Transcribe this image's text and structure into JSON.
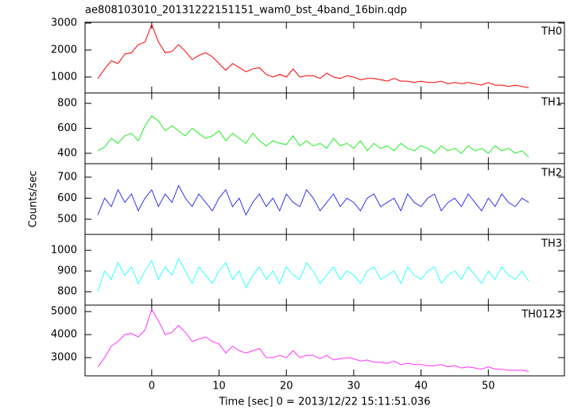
{
  "chart_data": [
    {
      "type": "line",
      "title": "ae808103010_20131222151151_wam0_bst_4band_16bin.qdp",
      "x": [
        -8,
        -7,
        -6,
        -5,
        -4,
        -3,
        -2,
        -1,
        0,
        1,
        2,
        3,
        4,
        5,
        6,
        7,
        8,
        9,
        10,
        11,
        12,
        13,
        14,
        15,
        16,
        17,
        18,
        19,
        20,
        21,
        22,
        23,
        24,
        25,
        26,
        27,
        28,
        29,
        30,
        31,
        32,
        33,
        34,
        35,
        36,
        37,
        38,
        39,
        40,
        41,
        42,
        43,
        44,
        45,
        46,
        47,
        48,
        49,
        50,
        51,
        52,
        53,
        54,
        55,
        56
      ],
      "series": [
        {
          "name": "TH0",
          "color": "#ff0000",
          "values": [
            950,
            1300,
            1600,
            1500,
            1850,
            1900,
            2200,
            2300,
            2950,
            2300,
            1900,
            1950,
            2200,
            1950,
            1650,
            1800,
            1900,
            1750,
            1500,
            1250,
            1500,
            1350,
            1200,
            1300,
            1350,
            1100,
            1000,
            1100,
            1000,
            1300,
            1000,
            1050,
            1050,
            950,
            1150,
            1000,
            950,
            1050,
            1000,
            900,
            950,
            950,
            900,
            850,
            950,
            850,
            850,
            800,
            850,
            800,
            800,
            850,
            750,
            800,
            750,
            800,
            750,
            700,
            800,
            700,
            700,
            650,
            700,
            650,
            600
          ]
        }
      ],
      "xlim": [
        -9.9,
        61.3
      ],
      "xticks": [
        0,
        10,
        20,
        30,
        40,
        50
      ],
      "ylim": [
        410,
        3030
      ],
      "yticks": [
        1000,
        2000,
        3000
      ]
    },
    {
      "type": "line",
      "x": [
        -8,
        -7,
        -6,
        -5,
        -4,
        -3,
        -2,
        -1,
        0,
        1,
        2,
        3,
        4,
        5,
        6,
        7,
        8,
        9,
        10,
        11,
        12,
        13,
        14,
        15,
        16,
        17,
        18,
        19,
        20,
        21,
        22,
        23,
        24,
        25,
        26,
        27,
        28,
        29,
        30,
        31,
        32,
        33,
        34,
        35,
        36,
        37,
        38,
        39,
        40,
        41,
        42,
        43,
        44,
        45,
        46,
        47,
        48,
        49,
        50,
        51,
        52,
        53,
        54,
        55,
        56
      ],
      "series": [
        {
          "name": "TH1",
          "color": "#22ee22",
          "values": [
            420,
            450,
            520,
            480,
            540,
            560,
            500,
            620,
            700,
            660,
            580,
            620,
            580,
            540,
            600,
            560,
            520,
            540,
            580,
            500,
            560,
            520,
            480,
            560,
            500,
            460,
            500,
            480,
            470,
            540,
            460,
            500,
            460,
            480,
            440,
            520,
            460,
            480,
            440,
            500,
            420,
            480,
            440,
            460,
            420,
            480,
            440,
            420,
            460,
            440,
            400,
            460,
            420,
            440,
            400,
            460,
            420,
            440,
            400,
            460,
            420,
            440,
            400,
            420,
            370
          ]
        }
      ],
      "xlim": [
        -9.9,
        61.3
      ],
      "xticks": [
        0,
        10,
        20,
        30,
        40,
        50
      ],
      "ylim": [
        317,
        883
      ],
      "yticks": [
        400,
        600,
        800
      ]
    },
    {
      "type": "line",
      "y_label": "Counts/sec",
      "x": [
        -8,
        -7,
        -6,
        -5,
        -4,
        -3,
        -2,
        -1,
        0,
        1,
        2,
        3,
        4,
        5,
        6,
        7,
        8,
        9,
        10,
        11,
        12,
        13,
        14,
        15,
        16,
        17,
        18,
        19,
        20,
        21,
        22,
        23,
        24,
        25,
        26,
        27,
        28,
        29,
        30,
        31,
        32,
        33,
        34,
        35,
        36,
        37,
        38,
        39,
        40,
        41,
        42,
        43,
        44,
        45,
        46,
        47,
        48,
        49,
        50,
        51,
        52,
        53,
        54,
        55,
        56
      ],
      "series": [
        {
          "name": "TH2",
          "color": "#3333ee",
          "values": [
            520,
            600,
            560,
            640,
            580,
            620,
            540,
            600,
            640,
            560,
            620,
            580,
            660,
            600,
            560,
            620,
            580,
            540,
            600,
            640,
            560,
            600,
            520,
            580,
            620,
            560,
            600,
            540,
            620,
            580,
            560,
            640,
            600,
            540,
            580,
            620,
            560,
            600,
            580,
            540,
            600,
            620,
            560,
            580,
            600,
            540,
            620,
            580,
            560,
            600,
            620,
            540,
            580,
            600,
            560,
            620,
            580,
            540,
            600,
            560,
            620,
            580,
            560,
            600,
            580
          ]
        }
      ],
      "xlim": [
        -9.9,
        61.3
      ],
      "xticks": [
        0,
        10,
        20,
        30,
        40,
        50
      ],
      "ylim": [
        428,
        764
      ],
      "yticks": [
        500,
        600,
        700
      ]
    },
    {
      "type": "line",
      "x": [
        -8,
        -7,
        -6,
        -5,
        -4,
        -3,
        -2,
        -1,
        0,
        1,
        2,
        3,
        4,
        5,
        6,
        7,
        8,
        9,
        10,
        11,
        12,
        13,
        14,
        15,
        16,
        17,
        18,
        19,
        20,
        21,
        22,
        23,
        24,
        25,
        26,
        27,
        28,
        29,
        30,
        31,
        32,
        33,
        34,
        35,
        36,
        37,
        38,
        39,
        40,
        41,
        42,
        43,
        44,
        45,
        46,
        47,
        48,
        49,
        50,
        51,
        52,
        53,
        54,
        55,
        56
      ],
      "series": [
        {
          "name": "TH3",
          "color": "#33ffff",
          "values": [
            800,
            900,
            860,
            940,
            880,
            920,
            840,
            900,
            950,
            860,
            920,
            880,
            960,
            900,
            840,
            920,
            880,
            840,
            900,
            940,
            860,
            900,
            820,
            880,
            920,
            860,
            900,
            840,
            920,
            880,
            860,
            940,
            900,
            840,
            880,
            920,
            860,
            900,
            880,
            840,
            900,
            920,
            860,
            880,
            900,
            840,
            920,
            880,
            860,
            900,
            920,
            840,
            880,
            900,
            860,
            920,
            880,
            840,
            900,
            860,
            920,
            880,
            860,
            900,
            850
          ]
        }
      ],
      "xlim": [
        -9.9,
        61.3
      ],
      "xticks": [
        0,
        10,
        20,
        30,
        40,
        50
      ],
      "ylim": [
        735,
        1077
      ],
      "yticks": [
        800,
        900,
        1000
      ]
    },
    {
      "type": "line",
      "x_label": "Time [sec] 0 = 2013/12/22 15:11:51.036",
      "x": [
        -8,
        -7,
        -6,
        -5,
        -4,
        -3,
        -2,
        -1,
        0,
        1,
        2,
        3,
        4,
        5,
        6,
        7,
        8,
        9,
        10,
        11,
        12,
        13,
        14,
        15,
        16,
        17,
        18,
        19,
        20,
        21,
        22,
        23,
        24,
        25,
        26,
        27,
        28,
        29,
        30,
        31,
        32,
        33,
        34,
        35,
        36,
        37,
        38,
        39,
        40,
        41,
        42,
        43,
        44,
        45,
        46,
        47,
        48,
        49,
        50,
        51,
        52,
        53,
        54,
        55,
        56
      ],
      "series": [
        {
          "name": "TH0123",
          "color": "#ff33ff",
          "values": [
            2600,
            3000,
            3500,
            3700,
            4000,
            4050,
            3900,
            4200,
            5100,
            4600,
            4000,
            4100,
            4400,
            4100,
            3700,
            3800,
            3900,
            3700,
            3600,
            3200,
            3500,
            3300,
            3200,
            3300,
            3400,
            3000,
            3000,
            3100,
            3000,
            3300,
            3000,
            3100,
            3100,
            2950,
            3100,
            2900,
            2950,
            3000,
            2950,
            2850,
            2900,
            2800,
            2800,
            2750,
            2850,
            2700,
            2750,
            2700,
            2700,
            2650,
            2650,
            2700,
            2600,
            2650,
            2550,
            2600,
            2550,
            2500,
            2600,
            2500,
            2500,
            2450,
            2450,
            2450,
            2400
          ]
        }
      ],
      "xlim": [
        -9.9,
        61.3
      ],
      "xticks": [
        0,
        10,
        20,
        30,
        40,
        50
      ],
      "ylim": [
        2210,
        5280
      ],
      "yticks": [
        3000,
        4000,
        5000
      ]
    }
  ]
}
